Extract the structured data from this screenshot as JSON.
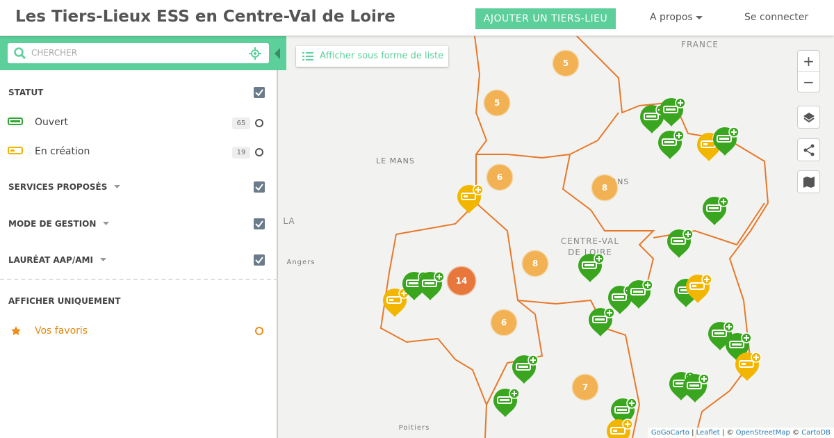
{
  "header": {
    "title": "Les Tiers-Lieux ESS en Centre-Val de Loire",
    "add_button": "AJOUTER UN TIERS-LIEU",
    "about": "A propos",
    "login": "Se connecter"
  },
  "sidebar": {
    "search_placeholder": "CHERCHER",
    "status": {
      "title": "STATUT",
      "options": [
        {
          "label": "Ouvert",
          "count": 65
        },
        {
          "label": "En création",
          "count": 19
        }
      ]
    },
    "sections": [
      "SERVICES PROPOSÉS",
      "MODE DE GESTION",
      "LAURÉAT AAP/AMI"
    ],
    "show_only": {
      "title": "AFFICHER UNIQUEMENT",
      "favorites": "Vos favoris"
    }
  },
  "map": {
    "list_button": "Afficher sous forme de liste",
    "place_labels": [
      "FRANCE",
      "LE MANS",
      "LEANS",
      "CENTRE-VAL",
      "DE LOIRE",
      "Angers",
      "Poitiers",
      "LA"
    ],
    "clusters": [
      5,
      5,
      6,
      8,
      8,
      14,
      6,
      7
    ],
    "zoom_in": "+",
    "zoom_out": "−",
    "attribution": [
      "GoGoCarto",
      "Leaflet",
      "OpenStreetMap",
      "CartoDB"
    ]
  }
}
